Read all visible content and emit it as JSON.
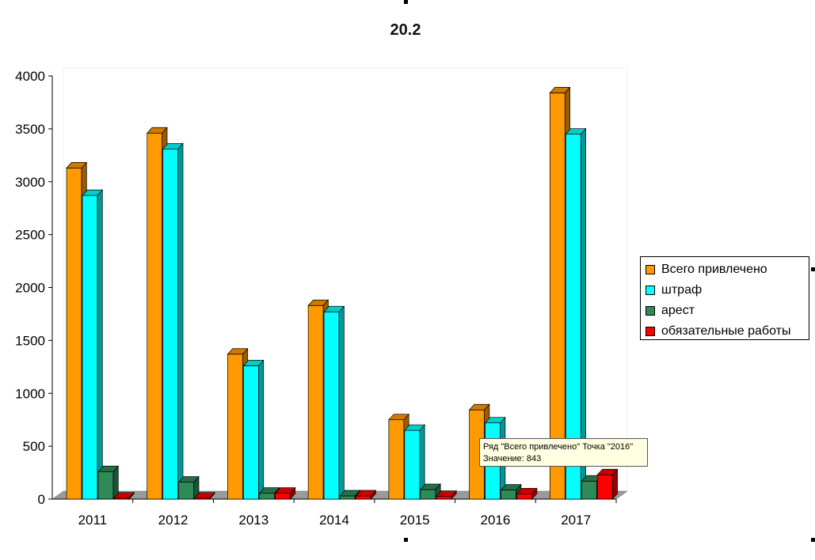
{
  "chart_data": {
    "type": "bar",
    "title": "20.2",
    "categories": [
      "2011",
      "2012",
      "2013",
      "2014",
      "2015",
      "2016",
      "2017"
    ],
    "series": [
      {
        "name": "Всего привлечено",
        "color": "#ff9900",
        "values": [
          3130,
          3460,
          1370,
          1830,
          750,
          843,
          3840
        ]
      },
      {
        "name": "штраф",
        "color": "#00ffff",
        "values": [
          2870,
          3310,
          1260,
          1770,
          650,
          720,
          3450
        ]
      },
      {
        "name": "арест",
        "color": "#2e8b57",
        "values": [
          260,
          160,
          55,
          30,
          90,
          85,
          170
        ]
      },
      {
        "name": "обязательные работы",
        "color": "#ff0000",
        "values": [
          10,
          10,
          55,
          30,
          25,
          50,
          230
        ]
      }
    ],
    "yticks": [
      "0",
      "500",
      "1000",
      "1500",
      "2000",
      "2500",
      "3000",
      "3500",
      "4000"
    ],
    "ylim": [
      0,
      4000
    ],
    "grid": false,
    "legend_position": "right"
  },
  "tooltip": {
    "line1": "Ряд \"Всего привлечено\" Точка \"2016\"",
    "line2": "Значение: 843"
  }
}
